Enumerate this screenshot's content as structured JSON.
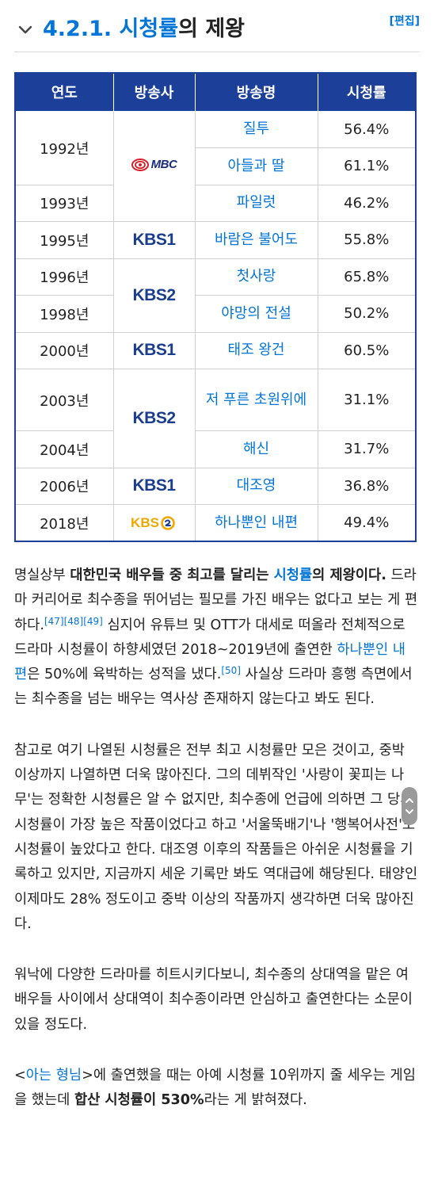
{
  "section": {
    "number": "4.2.1.",
    "title_link": "시청률",
    "title_rest": "의 제왕",
    "edit_label": "[편집]"
  },
  "table": {
    "headers": [
      "연도",
      "방송사",
      "방송명",
      "시청률"
    ],
    "rows": [
      {
        "year": "1992년",
        "show": "질투",
        "rating": "56.4%"
      },
      {
        "show": "아들과 딸",
        "rating": "61.1%"
      },
      {
        "year": "1993년",
        "show": "파일럿",
        "rating": "46.2%"
      },
      {
        "year": "1995년",
        "show": "바람은 불어도",
        "rating": "55.8%"
      },
      {
        "year": "1996년",
        "show": "첫사랑",
        "rating": "65.8%"
      },
      {
        "year": "1998년",
        "show": "야망의 전설",
        "rating": "50.2%"
      },
      {
        "year": "2000년",
        "show": "태조 왕건",
        "rating": "60.5%"
      },
      {
        "year": "2003년",
        "show": "저 푸른 초원위에",
        "rating": "31.1%"
      },
      {
        "year": "2004년",
        "show": "해신",
        "rating": "31.7%"
      },
      {
        "year": "2006년",
        "show": "대조영",
        "rating": "36.8%"
      },
      {
        "year": "2018년",
        "show": "하나뿐인 내편",
        "rating": "49.4%"
      }
    ],
    "broadcasters": {
      "mbc": "MBC",
      "kbs1": "KBS1",
      "kbs2": "KBS2",
      "kbs2_new": "KBS"
    }
  },
  "article": {
    "p1": {
      "t1": "명실상부 ",
      "b1": "대한민국 배우들 중 최고를 달리는 ",
      "link1": "시청률",
      "b2": "의 제왕이다.",
      "t2": " 드라마 커리어로 최수종을 뛰어넘는 필모를 가진 배우는 없다고 보는 게 편하다.",
      "refs1": "[47][48][49]",
      "t3": " 심지어 유튜브 및 OTT가 대세로 떠올라 전체적으로 드라마 시청률이 하향세였던 2018~2019년에 출연한 ",
      "link2": "하나뿐인 내편",
      "t4": "은 50%에 육박하는 성적을 냈다.",
      "refs2": "[50]",
      "t5": " 사실상 드라마 흥행 측면에서는 최수종을 넘는 배우는 역사상 존재하지 않는다고 봐도 된다."
    },
    "p2": "참고로 여기 나열된 시청률은 전부 최고 시청률만 모은 것이고, 중박 이상까지 나열하면 더욱 많아진다. 그의 데뷔작인 '사랑이 꽃피는 나무'는 정확한 시청률은 알 수 없지만, 최수종에 언급에 의하면 그 당시 시청률이 가장 높은 작품이었다고 하고 '서울뚝배기'나 '행복어사전'도 시청률이 높았다고 한다. 대조영 이후의 작품들은 아쉬운 시청률을 기록하고 있지만, 지금까지 세운 기록만 봐도 역대급에 해당된다. 태양인 이제마도 28% 정도이고 중박 이상의 작품까지 생각하면 더욱 많아진다.",
    "p3": "워낙에 다양한 드라마를 히트시키다보니, 최수종의 상대역을 맡은 여배우들 사이에서 상대역이 최수종이라면 안심하고 출연한다는 소문이 있을 정도다.",
    "p4": {
      "t1": "<",
      "link": "아는 형님",
      "t2": ">에 출연했을 때는 아예 시청률 10위까지 줄 세우는 게임을 했는데 ",
      "b1": "합산 시청률이 530%",
      "t3": "라는 게 밝혀졌다."
    }
  },
  "colors": {
    "header_bg": "#1c3f9a",
    "link": "#0275d8",
    "kbs2_new_logo": "#f0a800"
  }
}
